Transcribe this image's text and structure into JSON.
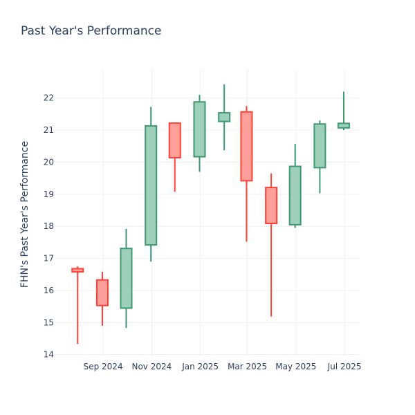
{
  "chart_data": {
    "type": "candlestick",
    "title": "Past Year's Performance",
    "xlabel": "",
    "ylabel": "FHN's Past Year's Performance",
    "ylim": [
      13.95,
      22.9
    ],
    "yticks": [
      14,
      15,
      16,
      17,
      18,
      19,
      20,
      21,
      22
    ],
    "xlim": [
      "2024-07-03",
      "2025-07-20"
    ],
    "xticks": [
      {
        "date": "2024-09-01",
        "label": "Sep 2024"
      },
      {
        "date": "2024-11-01",
        "label": "Nov 2024"
      },
      {
        "date": "2025-01-01",
        "label": "Jan 2025"
      },
      {
        "date": "2025-03-01",
        "label": "Mar 2025"
      },
      {
        "date": "2025-05-01",
        "label": "May 2025"
      },
      {
        "date": "2025-07-01",
        "label": "Jul 2025"
      }
    ],
    "increasing_color": "#3d9970",
    "increasing_fill": "#9ecfb8",
    "decreasing_color": "#ff4136",
    "decreasing_fill": "#ff9f9a",
    "grid": true,
    "candles": [
      {
        "date": "2024-07-31",
        "open": 16.68,
        "high": 16.75,
        "low": 14.33,
        "close": 16.58
      },
      {
        "date": "2024-08-31",
        "open": 16.33,
        "high": 16.58,
        "low": 14.9,
        "close": 15.53
      },
      {
        "date": "2024-09-30",
        "open": 15.45,
        "high": 17.92,
        "low": 14.83,
        "close": 17.31
      },
      {
        "date": "2024-10-31",
        "open": 17.42,
        "high": 21.72,
        "low": 16.9,
        "close": 21.13
      },
      {
        "date": "2024-11-30",
        "open": 21.22,
        "high": 21.22,
        "low": 19.08,
        "close": 20.14
      },
      {
        "date": "2024-12-31",
        "open": 20.17,
        "high": 22.1,
        "low": 19.7,
        "close": 21.88
      },
      {
        "date": "2025-01-31",
        "open": 21.27,
        "high": 22.43,
        "low": 20.37,
        "close": 21.54
      },
      {
        "date": "2025-02-28",
        "open": 21.57,
        "high": 21.75,
        "low": 17.52,
        "close": 19.42
      },
      {
        "date": "2025-03-31",
        "open": 19.21,
        "high": 19.65,
        "low": 15.19,
        "close": 18.09
      },
      {
        "date": "2025-04-30",
        "open": 18.05,
        "high": 20.57,
        "low": 17.95,
        "close": 19.87
      },
      {
        "date": "2025-05-31",
        "open": 19.83,
        "high": 21.3,
        "low": 19.03,
        "close": 21.19
      },
      {
        "date": "2025-06-30",
        "open": 21.07,
        "high": 22.2,
        "low": 21.0,
        "close": 21.21
      }
    ]
  }
}
